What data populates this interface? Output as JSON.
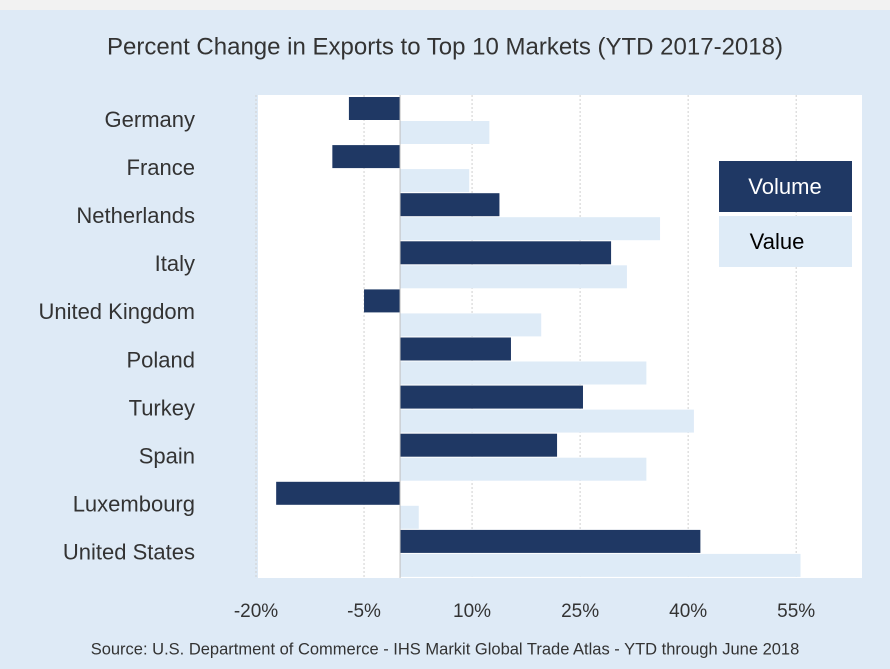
{
  "chart_data": {
    "type": "bar",
    "orientation": "horizontal",
    "title": "Percent Change in Exports to Top 10 Markets (YTD 2017-2018)",
    "source": "Source: U.S. Department of Commerce - IHS Markit Global Trade Atlas - YTD through June 2018",
    "categories": [
      "Germany",
      "France",
      "Netherlands",
      "Italy",
      "United Kingdom",
      "Poland",
      "Turkey",
      "Spain",
      "Luxembourg",
      "United States"
    ],
    "series": [
      {
        "name": "Volume",
        "color": "#1f3864",
        "values": [
          -7.1,
          -9.4,
          13.8,
          29.3,
          -5.0,
          15.4,
          25.4,
          21.8,
          -17.2,
          41.7
        ]
      },
      {
        "name": "Value",
        "color": "#deebf7",
        "values": [
          12.4,
          9.6,
          36.1,
          31.5,
          19.6,
          34.2,
          40.8,
          34.2,
          2.6,
          55.6
        ]
      }
    ],
    "xlim": [
      -20,
      64
    ],
    "xticks": [
      {
        "value": -20,
        "label": "-20%"
      },
      {
        "value": -5,
        "label": "-5%"
      },
      {
        "value": 10,
        "label": "10%"
      },
      {
        "value": 25,
        "label": "25%"
      },
      {
        "value": 40,
        "label": "40%"
      },
      {
        "value": 55,
        "label": "55%"
      }
    ],
    "grid": true,
    "legend": "right"
  }
}
